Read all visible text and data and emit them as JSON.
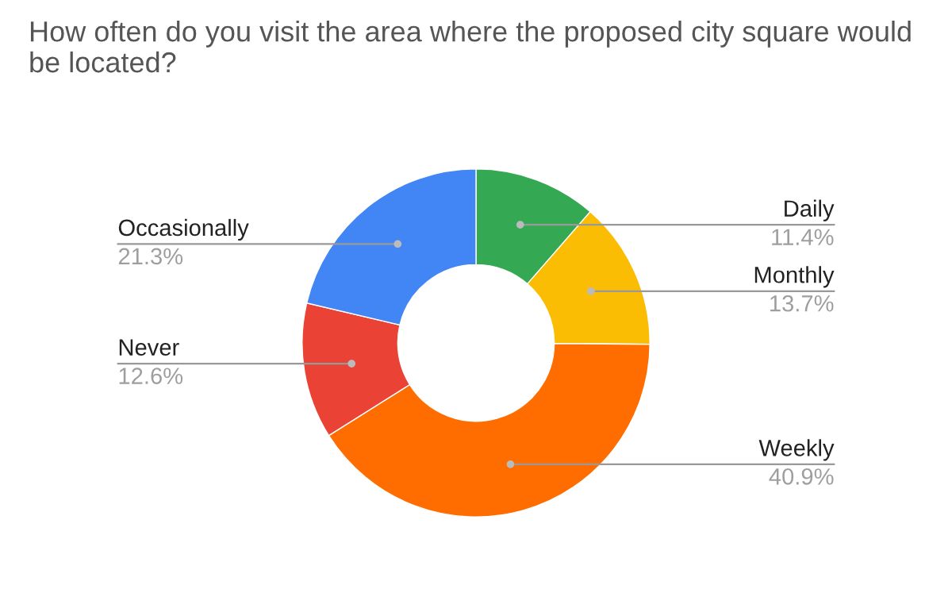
{
  "chart_data": {
    "type": "donut",
    "title": "How often do you visit the area where the proposed city square would be located?",
    "categories": [
      "Daily",
      "Monthly",
      "Weekly",
      "Never",
      "Occasionally"
    ],
    "values": [
      11.4,
      13.7,
      40.9,
      12.6,
      21.3
    ],
    "value_labels": [
      "11.4%",
      "13.7%",
      "40.9%",
      "12.6%",
      "21.3%"
    ],
    "colors": [
      "#34a853",
      "#fbbc04",
      "#ff6d01",
      "#ea4335",
      "#4285f4"
    ],
    "legend": false
  }
}
